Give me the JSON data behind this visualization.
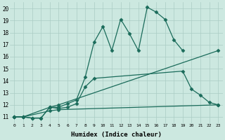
{
  "xlabel": "Humidex (Indice chaleur)",
  "background_color": "#cce8e0",
  "grid_color": "#aaccc4",
  "line_color": "#1a6b5a",
  "xlim": [
    -0.5,
    23.5
  ],
  "ylim": [
    10.5,
    20.5
  ],
  "xticks": [
    0,
    1,
    2,
    3,
    4,
    5,
    6,
    7,
    8,
    9,
    10,
    11,
    12,
    13,
    14,
    15,
    16,
    17,
    18,
    19,
    20,
    21,
    22,
    23
  ],
  "yticks": [
    11,
    12,
    13,
    14,
    15,
    16,
    17,
    18,
    19,
    20
  ],
  "series": [
    {
      "x": [
        0,
        1,
        2,
        3,
        4,
        5,
        6,
        7,
        8,
        9,
        10,
        11,
        12,
        13,
        14,
        15,
        16,
        17,
        18,
        19
      ],
      "y": [
        11,
        11,
        10.9,
        10.9,
        11.8,
        11.8,
        12.1,
        12.4,
        14.3,
        17.2,
        18.5,
        16.5,
        19.1,
        17.9,
        16.5,
        20.1,
        19.7,
        19.1,
        17.4,
        16.5
      ]
    },
    {
      "x": [
        0,
        1,
        2,
        3,
        4,
        5,
        6,
        7,
        8,
        9,
        19,
        20,
        21,
        22,
        23
      ],
      "y": [
        11,
        11,
        10.9,
        10.9,
        11.8,
        11.7,
        11.8,
        12.1,
        13.5,
        14.2,
        14.8,
        13.3,
        12.8,
        12.2,
        12.0
      ]
    },
    {
      "x": [
        0,
        1,
        4,
        5,
        23
      ],
      "y": [
        11,
        11,
        11.8,
        12.0,
        16.5
      ]
    },
    {
      "x": [
        0,
        1,
        4,
        5,
        23
      ],
      "y": [
        11,
        11,
        11.5,
        11.6,
        12.0
      ]
    }
  ]
}
